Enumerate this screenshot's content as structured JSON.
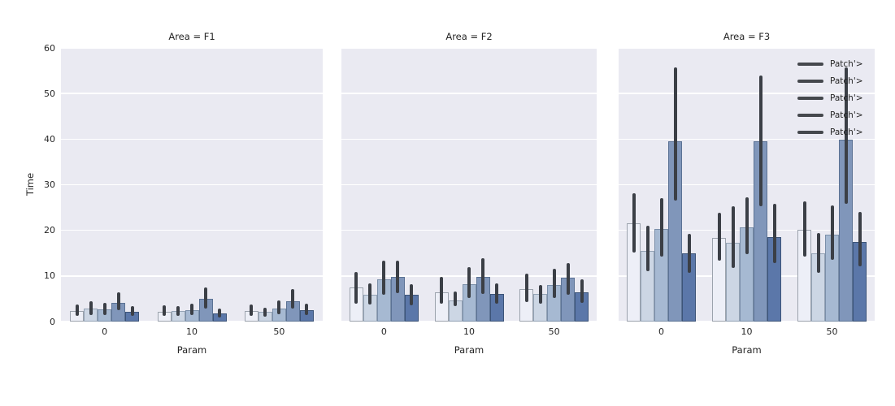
{
  "figure": {
    "ylabel": "Time",
    "xlabel": "Param"
  },
  "colors": {
    "figure_bg": "#ffffff",
    "panel_bg": "#eaeaf2",
    "grid": "#ffffff",
    "text": "#262626",
    "error_bar": "#3b3f46",
    "legend_marker": "#45484d",
    "bar_fills": [
      "#edeff7",
      "#ccd6e4",
      "#a6b9d2",
      "#8096ba",
      "#5b77a9"
    ],
    "bar_edges": [
      "#9ca3ad",
      "#94a3b5",
      "#7b8fa9",
      "#5b7294",
      "#3c5478"
    ]
  },
  "legend": {
    "position": "upper right",
    "entries": [
      "Patch'>",
      "Patch'>",
      "Patch'>",
      "Patch'>",
      "Patch'>"
    ]
  },
  "chart_data": [
    {
      "type": "bar",
      "title": "Area = F1",
      "xlabel": "Param",
      "ylabel": "Time",
      "categories": [
        "0",
        "10",
        "50"
      ],
      "ylim": [
        0,
        60
      ],
      "yticks": [
        0,
        10,
        20,
        30,
        40,
        50,
        60
      ],
      "grid": true,
      "series": [
        {
          "name": "Patch'>",
          "values": [
            2.4,
            2.2,
            2.3
          ],
          "err_low": [
            1.2,
            1.2,
            1.2
          ],
          "err_high": [
            3.7,
            3.5,
            3.7
          ]
        },
        {
          "name": "Patch'>",
          "values": [
            2.9,
            2.3,
            2.1
          ],
          "err_low": [
            1.5,
            1.2,
            1.1
          ],
          "err_high": [
            4.5,
            3.4,
            3.1
          ]
        },
        {
          "name": "Patch'>",
          "values": [
            2.7,
            2.5,
            2.9
          ],
          "err_low": [
            1.4,
            1.4,
            1.6
          ],
          "err_high": [
            4.1,
            3.9,
            4.6
          ]
        },
        {
          "name": "Patch'>",
          "values": [
            4.1,
            5.0,
            4.5
          ],
          "err_low": [
            2.5,
            2.9,
            2.9
          ],
          "err_high": [
            6.5,
            7.5,
            7.1
          ]
        },
        {
          "name": "Patch'>",
          "values": [
            2.2,
            1.8,
            2.5
          ],
          "err_low": [
            1.2,
            0.9,
            1.5
          ],
          "err_high": [
            3.3,
            2.8,
            3.9
          ]
        }
      ]
    },
    {
      "type": "bar",
      "title": "Area = F2",
      "xlabel": "Param",
      "ylabel": "Time",
      "categories": [
        "0",
        "10",
        "50"
      ],
      "ylim": [
        0,
        60
      ],
      "yticks": [
        0,
        10,
        20,
        30,
        40,
        50,
        60
      ],
      "grid": true,
      "series": [
        {
          "name": "Patch'>",
          "values": [
            7.4,
            6.5,
            7.1
          ],
          "err_low": [
            4.0,
            3.9,
            4.3
          ],
          "err_high": [
            10.9,
            9.8,
            10.5
          ]
        },
        {
          "name": "Patch'>",
          "values": [
            5.9,
            4.7,
            6.1
          ],
          "err_low": [
            3.7,
            3.3,
            4.0
          ],
          "err_high": [
            8.4,
            6.6,
            8.0
          ]
        },
        {
          "name": "Patch'>",
          "values": [
            9.3,
            8.2,
            8.1
          ],
          "err_low": [
            5.8,
            5.2,
            5.1
          ],
          "err_high": [
            13.4,
            11.9,
            11.6
          ]
        },
        {
          "name": "Patch'>",
          "values": [
            9.8,
            9.8,
            9.7
          ],
          "err_low": [
            6.3,
            6.1,
            5.9
          ],
          "err_high": [
            13.4,
            13.9,
            12.9
          ]
        },
        {
          "name": "Patch'>",
          "values": [
            5.8,
            6.1,
            6.5
          ],
          "err_low": [
            3.5,
            3.9,
            4.1
          ],
          "err_high": [
            8.2,
            8.4,
            9.3
          ]
        }
      ]
    },
    {
      "type": "bar",
      "title": "Area = F3",
      "xlabel": "Param",
      "ylabel": "Time",
      "categories": [
        "0",
        "10",
        "50"
      ],
      "ylim": [
        0,
        60
      ],
      "yticks": [
        0,
        10,
        20,
        30,
        40,
        50,
        60
      ],
      "grid": true,
      "has_legend": true,
      "series": [
        {
          "name": "Patch'>",
          "values": [
            21.5,
            18.4,
            20.1
          ],
          "err_low": [
            15.2,
            13.3,
            14.3
          ],
          "err_high": [
            28.2,
            23.9,
            26.3
          ]
        },
        {
          "name": "Patch'>",
          "values": [
            15.5,
            17.2,
            14.9
          ],
          "err_low": [
            11.0,
            11.8,
            10.6
          ],
          "err_high": [
            21.0,
            25.2,
            19.4
          ]
        },
        {
          "name": "Patch'>",
          "values": [
            20.3,
            20.6,
            19.1
          ],
          "err_low": [
            14.3,
            14.7,
            13.6
          ],
          "err_high": [
            27.0,
            27.2,
            25.5
          ]
        },
        {
          "name": "Patch'>",
          "values": [
            39.5,
            39.5,
            39.8
          ],
          "err_low": [
            26.5,
            25.2,
            25.9
          ],
          "err_high": [
            55.8,
            54.0,
            55.7
          ]
        },
        {
          "name": "Patch'>",
          "values": [
            15.0,
            18.5,
            17.4
          ],
          "err_low": [
            10.6,
            12.8,
            12.1
          ],
          "err_high": [
            19.3,
            25.9,
            24.0
          ]
        }
      ]
    }
  ]
}
